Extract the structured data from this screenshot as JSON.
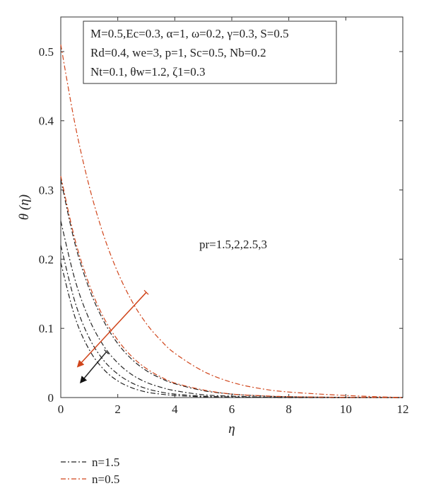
{
  "chart_data": {
    "type": "line",
    "xlabel": "η",
    "ylabel": "θ (η)",
    "xlim": [
      0,
      12
    ],
    "ylim": [
      0,
      0.55
    ],
    "xticks": [
      "0",
      "2",
      "4",
      "6",
      "8",
      "10",
      "12"
    ],
    "yticks": [
      "0",
      "0.1",
      "0.2",
      "0.3",
      "0.4",
      "0.5"
    ],
    "grid": false,
    "legend_position": "bottom-left, below plot",
    "params_box": [
      "M=0.5,Ec=0.3, α=1, ω=0.2, γ=0.3, S=0.5",
      "Rd=0.4, we=3, p=1, Sc=0.5, Nb=0.2",
      "Nt=0.1, θw=1.2, ζ1=0.3"
    ],
    "annotation": "pr=1.5,2,2.5,3",
    "series": [
      {
        "name": "n=1.5",
        "color": "#222222",
        "curves": [
          {
            "x": [
              0,
              0.5,
              1,
              1.5,
              2,
              2.5,
              3,
              3.5,
              4,
              5,
              6,
              7,
              8,
              10,
              12
            ],
            "y": [
              0.315,
              0.222,
              0.157,
              0.111,
              0.078,
              0.055,
              0.039,
              0.028,
              0.02,
              0.01,
              0.005,
              0.0024,
              0.0012,
              0.0003,
              0.0
            ]
          },
          {
            "x": [
              0,
              0.5,
              1,
              1.5,
              2,
              2.5,
              3,
              3.5,
              4,
              5,
              6,
              7,
              8,
              10,
              12
            ],
            "y": [
              0.255,
              0.17,
              0.113,
              0.075,
              0.05,
              0.033,
              0.022,
              0.015,
              0.01,
              0.004,
              0.002,
              0.0008,
              0.0003,
              0.0,
              0.0
            ]
          },
          {
            "x": [
              0,
              0.5,
              1,
              1.5,
              2,
              2.5,
              3,
              3.5,
              4,
              5,
              6,
              7,
              8,
              10,
              12
            ],
            "y": [
              0.22,
              0.138,
              0.086,
              0.054,
              0.034,
              0.021,
              0.013,
              0.008,
              0.005,
              0.002,
              0.0008,
              0.0003,
              0.0,
              0.0,
              0.0
            ]
          },
          {
            "x": [
              0,
              0.5,
              1,
              1.5,
              2,
              2.5,
              3,
              3.5,
              4,
              5,
              6,
              7,
              8,
              10,
              12
            ],
            "y": [
              0.195,
              0.116,
              0.069,
              0.041,
              0.024,
              0.014,
              0.008,
              0.005,
              0.003,
              0.001,
              0.0004,
              0.0001,
              0.0,
              0.0,
              0.0
            ]
          }
        ]
      },
      {
        "name": "n=0.5",
        "color": "#d0451b",
        "curves": [
          {
            "x": [
              0,
              0.5,
              1,
              1.5,
              2,
              2.5,
              3,
              3.5,
              4,
              5,
              6,
              7,
              8,
              10,
              12
            ],
            "y": [
              0.51,
              0.395,
              0.305,
              0.235,
              0.181,
              0.139,
              0.107,
              0.083,
              0.064,
              0.038,
              0.022,
              0.013,
              0.008,
              0.003,
              0.0
            ]
          },
          {
            "x": [
              0,
              0.5,
              1,
              1.5,
              2,
              2.5,
              3,
              3.5,
              4,
              5,
              6,
              7,
              8,
              10,
              12
            ],
            "y": [
              0.32,
              0.228,
              0.163,
              0.116,
              0.083,
              0.059,
              0.042,
              0.03,
              0.021,
              0.011,
              0.005,
              0.0027,
              0.0013,
              0.0003,
              0.0
            ]
          }
        ]
      }
    ],
    "arrows": [
      {
        "color": "#d0451b",
        "from": [
          3.0,
          0.152
        ],
        "to": [
          0.6,
          0.045
        ]
      },
      {
        "color": "#222222",
        "from": [
          1.6,
          0.066
        ],
        "to": [
          0.7,
          0.022
        ]
      }
    ]
  }
}
